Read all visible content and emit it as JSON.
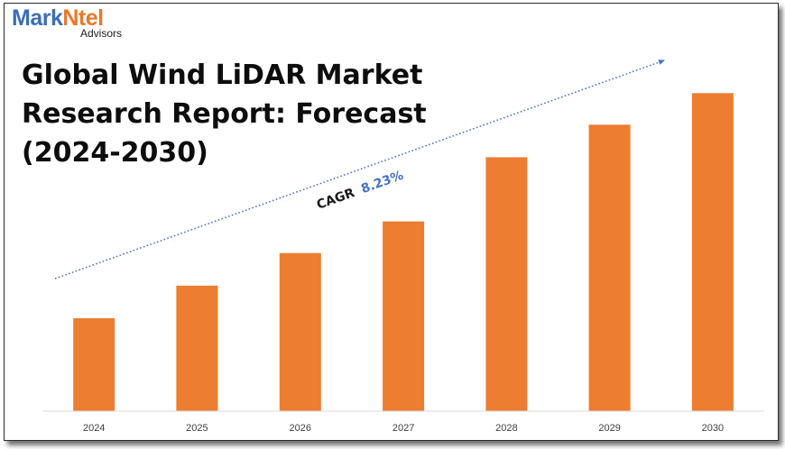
{
  "brand": {
    "part1": "Mark",
    "part2": "Ntel",
    "sub": "Advisors"
  },
  "title_lines": [
    "Global Wind LiDAR Market",
    "Research Report: Forecast",
    "(2024-2030)"
  ],
  "annotation": {
    "label": "CAGR",
    "value": "8.23%"
  },
  "colors": {
    "bar": "#ed7d31",
    "cagr_value": "#4472c4",
    "logo_blue": "#3a6fb6",
    "logo_orange": "#e8782a",
    "trend_line": "#4472c4"
  },
  "chart_data": {
    "type": "bar",
    "title": "Global Wind LiDAR Market Research Report: Forecast (2024-2030)",
    "categories": [
      "2024",
      "2025",
      "2026",
      "2027",
      "2028",
      "2029",
      "2030"
    ],
    "values": [
      100,
      135,
      170,
      204,
      273,
      308,
      342
    ],
    "ylim": [
      0,
      350
    ],
    "grid": false,
    "y_axis_shown": false,
    "annotations": [
      {
        "text": "CAGR 8.23%",
        "kind": "trend-arrow"
      }
    ]
  }
}
